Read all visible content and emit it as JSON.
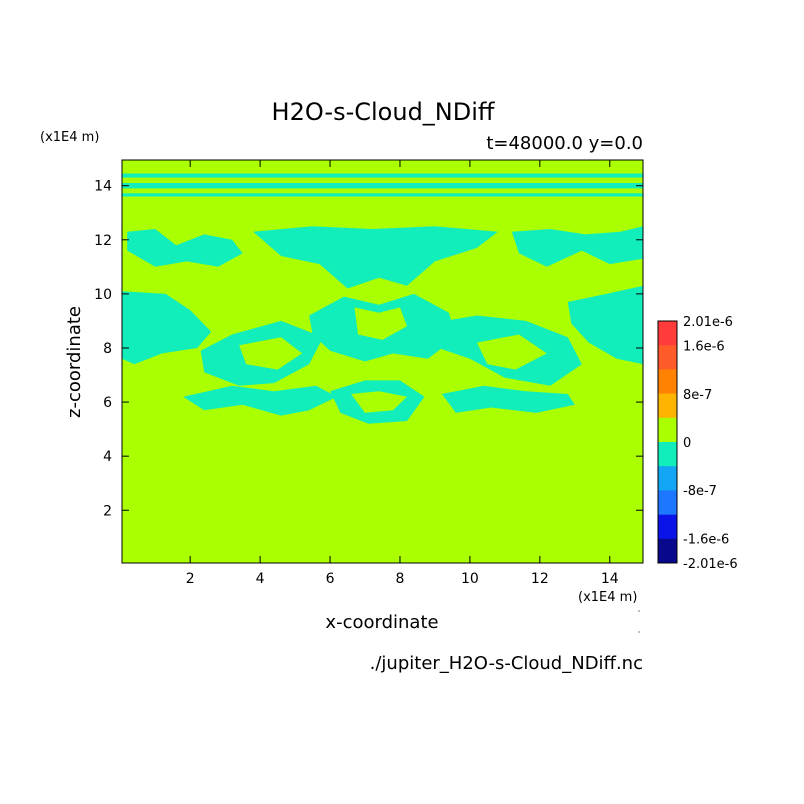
{
  "chart_data": {
    "type": "heatmap",
    "title": "H2O-s-Cloud_NDiff",
    "subtitle": "t=48000.0 y=0.0",
    "xlabel": "x-coordinate",
    "ylabel": "z-coordinate",
    "x_unit": "(x1E4 m)",
    "y_unit": "(x1E4 m)",
    "source_file": "./jupiter_H2O-s-Cloud_NDiff.nc",
    "xlim": [
      0.05,
      14.95
    ],
    "ylim": [
      0.05,
      14.95
    ],
    "x_ticks": [
      2,
      4,
      6,
      8,
      10,
      12,
      14
    ],
    "y_ticks": [
      2,
      4,
      6,
      8,
      10,
      12,
      14
    ],
    "background_value": 0,
    "background_color": "#aaff00",
    "negative_feature_color": "#11eebb",
    "colorbar": {
      "labels": [
        "2.01e-6",
        "1.6e-6",
        "8e-7",
        "0",
        "-8e-7",
        "-1.6e-6",
        "-2.01e-6"
      ],
      "label_values": [
        2.01e-06,
        1.6e-06,
        8e-07,
        0,
        -8e-07,
        -1.6e-06,
        -2.01e-06
      ],
      "bands": [
        {
          "color": "#ff3b3b"
        },
        {
          "color": "#ff5a2a"
        },
        {
          "color": "#ff8200"
        },
        {
          "color": "#ffb400"
        },
        {
          "color": "#aaff00"
        },
        {
          "color": "#11eebb"
        },
        {
          "color": "#12a6f4"
        },
        {
          "color": "#1e78ff"
        },
        {
          "color": "#0a14e8"
        },
        {
          "color": "#08088c"
        }
      ]
    },
    "negative_regions_bands": [
      {
        "y": [
          14.3,
          14.45
        ]
      },
      {
        "y": [
          13.9,
          14.1
        ]
      },
      {
        "y": [
          13.6,
          13.72
        ]
      }
    ],
    "negative_regions": [
      [
        [
          0.2,
          12.3
        ],
        [
          1.0,
          12.4
        ],
        [
          1.6,
          11.8
        ],
        [
          2.4,
          12.2
        ],
        [
          3.2,
          12.0
        ],
        [
          3.5,
          11.5
        ],
        [
          2.8,
          11.0
        ],
        [
          1.9,
          11.2
        ],
        [
          1.0,
          11.0
        ],
        [
          0.2,
          11.6
        ]
      ],
      [
        [
          3.8,
          12.3
        ],
        [
          5.5,
          12.5
        ],
        [
          7.2,
          12.4
        ],
        [
          9.0,
          12.5
        ],
        [
          10.8,
          12.3
        ],
        [
          10.2,
          11.7
        ],
        [
          9.0,
          11.2
        ],
        [
          8.2,
          10.3
        ],
        [
          7.4,
          10.6
        ],
        [
          6.5,
          10.2
        ],
        [
          5.7,
          11.1
        ],
        [
          4.6,
          11.4
        ]
      ],
      [
        [
          11.2,
          12.3
        ],
        [
          12.3,
          12.4
        ],
        [
          13.3,
          12.2
        ],
        [
          14.3,
          12.3
        ],
        [
          14.95,
          12.5
        ],
        [
          14.95,
          11.3
        ],
        [
          14.0,
          11.1
        ],
        [
          13.2,
          11.6
        ],
        [
          12.2,
          11.0
        ],
        [
          11.4,
          11.5
        ]
      ],
      [
        [
          0.05,
          10.1
        ],
        [
          1.3,
          10.0
        ],
        [
          2.0,
          9.4
        ],
        [
          2.6,
          8.6
        ],
        [
          2.2,
          8.0
        ],
        [
          1.2,
          7.8
        ],
        [
          0.4,
          7.4
        ],
        [
          0.05,
          7.6
        ]
      ],
      [
        [
          2.3,
          7.9
        ],
        [
          3.2,
          8.5
        ],
        [
          4.6,
          9.0
        ],
        [
          5.8,
          8.4
        ],
        [
          5.4,
          7.4
        ],
        [
          4.4,
          6.7
        ],
        [
          3.4,
          6.6
        ],
        [
          2.4,
          7.1
        ]
      ],
      [
        [
          5.4,
          9.2
        ],
        [
          6.4,
          9.9
        ],
        [
          7.4,
          9.6
        ],
        [
          8.4,
          10.0
        ],
        [
          9.4,
          9.3
        ],
        [
          9.6,
          8.4
        ],
        [
          8.8,
          7.6
        ],
        [
          7.8,
          7.8
        ],
        [
          7.0,
          7.5
        ],
        [
          6.0,
          7.9
        ],
        [
          5.5,
          8.5
        ]
      ],
      [
        [
          8.8,
          8.9
        ],
        [
          10.2,
          9.2
        ],
        [
          11.6,
          9.0
        ],
        [
          12.8,
          8.4
        ],
        [
          13.2,
          7.4
        ],
        [
          12.3,
          6.6
        ],
        [
          11.0,
          6.9
        ],
        [
          10.0,
          7.6
        ],
        [
          9.1,
          8.0
        ]
      ],
      [
        [
          12.8,
          9.7
        ],
        [
          13.9,
          10.0
        ],
        [
          14.95,
          10.3
        ],
        [
          14.95,
          7.4
        ],
        [
          14.2,
          7.6
        ],
        [
          13.4,
          8.2
        ],
        [
          12.9,
          8.9
        ]
      ],
      [
        [
          1.8,
          6.2
        ],
        [
          3.2,
          6.6
        ],
        [
          4.4,
          6.4
        ],
        [
          5.6,
          6.6
        ],
        [
          6.2,
          6.2
        ],
        [
          5.4,
          5.7
        ],
        [
          4.6,
          5.5
        ],
        [
          3.5,
          5.9
        ],
        [
          2.4,
          5.7
        ]
      ],
      [
        [
          6.0,
          6.4
        ],
        [
          7.0,
          6.8
        ],
        [
          8.0,
          6.8
        ],
        [
          8.7,
          6.2
        ],
        [
          8.2,
          5.3
        ],
        [
          7.1,
          5.2
        ],
        [
          6.3,
          5.6
        ]
      ],
      [
        [
          9.2,
          6.3
        ],
        [
          10.4,
          6.6
        ],
        [
          11.6,
          6.4
        ],
        [
          12.8,
          6.3
        ],
        [
          13.0,
          5.9
        ],
        [
          11.9,
          5.6
        ],
        [
          10.6,
          5.8
        ],
        [
          9.6,
          5.6
        ]
      ]
    ],
    "zero_islands": [
      [
        [
          6.7,
          9.5
        ],
        [
          7.4,
          9.3
        ],
        [
          8.0,
          9.5
        ],
        [
          8.2,
          8.8
        ],
        [
          7.5,
          8.3
        ],
        [
          6.8,
          8.5
        ]
      ],
      [
        [
          6.6,
          6.3
        ],
        [
          7.4,
          6.4
        ],
        [
          8.2,
          6.2
        ],
        [
          7.8,
          5.7
        ],
        [
          7.0,
          5.6
        ]
      ],
      [
        [
          3.4,
          8.1
        ],
        [
          4.6,
          8.4
        ],
        [
          5.2,
          7.8
        ],
        [
          4.5,
          7.2
        ],
        [
          3.6,
          7.4
        ]
      ],
      [
        [
          10.2,
          8.2
        ],
        [
          11.4,
          8.5
        ],
        [
          12.2,
          7.8
        ],
        [
          11.3,
          7.2
        ],
        [
          10.5,
          7.4
        ]
      ]
    ],
    "corner_glyphs": [
      "˙",
      "˙"
    ]
  }
}
